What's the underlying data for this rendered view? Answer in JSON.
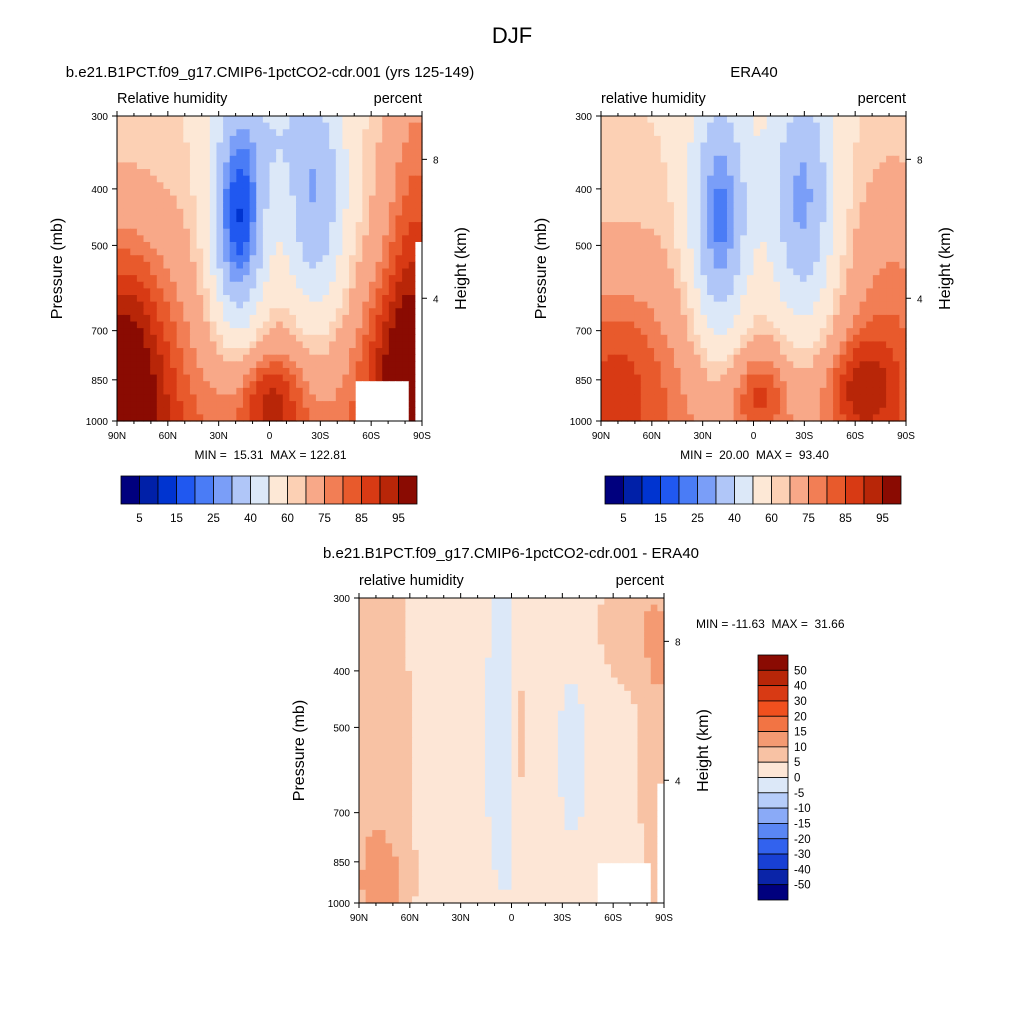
{
  "figure": {
    "title": "DJF"
  },
  "panels": [
    {
      "id": "model",
      "title": "b.e21.B1PCT.f09_g17.CMIP6-1pctCO2-cdr.001 (yrs 125-149)",
      "left_label": "Relative humidity",
      "right_label": "percent",
      "ylabel": "Pressure (mb)",
      "ylabel_right": "Height (km)",
      "x_ticks": [
        "90N",
        "60N",
        "30N",
        "0",
        "30S",
        "60S",
        "90S"
      ],
      "y_ticks": [
        "300",
        "400",
        "500",
        "700",
        "850",
        "1000"
      ],
      "height_ticks": [
        "8",
        "4"
      ],
      "minmax": "MIN =  15.31  MAX = 122.81",
      "colorbar_labels": [
        "5",
        "15",
        "25",
        "40",
        "60",
        "75",
        "85",
        "95"
      ]
    },
    {
      "id": "obs",
      "title": "ERA40",
      "left_label": "relative humidity",
      "right_label": "percent",
      "ylabel": "Pressure (mb)",
      "ylabel_right": "Height (km)",
      "x_ticks": [
        "90N",
        "60N",
        "30N",
        "0",
        "30S",
        "60S",
        "90S"
      ],
      "y_ticks": [
        "300",
        "400",
        "500",
        "700",
        "850",
        "1000"
      ],
      "height_ticks": [
        "8",
        "4"
      ],
      "minmax": "MIN =  20.00  MAX =  93.40",
      "colorbar_labels": [
        "5",
        "15",
        "25",
        "40",
        "60",
        "75",
        "85",
        "95"
      ]
    },
    {
      "id": "diff",
      "title": "b.e21.B1PCT.f09_g17.CMIP6-1pctCO2-cdr.001 - ERA40",
      "left_label": "relative humidity",
      "right_label": "percent",
      "ylabel": "Pressure (mb)",
      "ylabel_right": "Height (km)",
      "x_ticks": [
        "90N",
        "60N",
        "30N",
        "0",
        "30S",
        "60S",
        "90S"
      ],
      "y_ticks": [
        "300",
        "400",
        "500",
        "700",
        "850",
        "1000"
      ],
      "height_ticks": [
        "8",
        "4"
      ],
      "minmax": "MIN = -11.63  MAX =  31.66",
      "colorbar_labels": [
        "50",
        "40",
        "30",
        "20",
        "15",
        "10",
        "5",
        "0",
        "-5",
        "-10",
        "-15",
        "-20",
        "-30",
        "-40",
        "-50"
      ]
    }
  ],
  "colors": {
    "rh_scale": [
      "#00007e",
      "#0020a8",
      "#0034d0",
      "#2058f0",
      "#4a7cf6",
      "#7a9ef8",
      "#b0c6f8",
      "#dce8f8",
      "#fde8d6",
      "#fcd0b4",
      "#f8a888",
      "#f27e55",
      "#e85a2c",
      "#d83a14",
      "#b82608",
      "#8a0b02"
    ],
    "diff_scale": [
      "#8a0b02",
      "#b82608",
      "#d83a14",
      "#f0501e",
      "#f27444",
      "#f49a72",
      "#f8c2a4",
      "#fde6d6",
      "#dce8f8",
      "#b6cdfa",
      "#8aaaf7",
      "#5a86f4",
      "#3262ee",
      "#1840d4",
      "#0a24a8",
      "#00007e"
    ],
    "missing": "#ffffff"
  },
  "chart_data": [
    {
      "type": "heatmap",
      "title": "b.e21.B1PCT.f09_g17.CMIP6-1pctCO2-cdr.001 (yrs 125-149)",
      "variable": "Relative humidity",
      "units": "percent",
      "x": [
        90,
        60,
        30,
        0,
        -30,
        -60,
        -90
      ],
      "x_labels": [
        "90N",
        "60N",
        "30N",
        "0",
        "30S",
        "60S",
        "90S"
      ],
      "y": [
        300,
        400,
        500,
        700,
        850,
        1000
      ],
      "xlabel": "",
      "ylabel": "Pressure (mb)",
      "levels": [
        5,
        10,
        15,
        20,
        25,
        30,
        40,
        50,
        60,
        65,
        75,
        80,
        85,
        90,
        95
      ],
      "min": 15.31,
      "max": 122.81
    },
    {
      "type": "heatmap",
      "title": "ERA40",
      "variable": "relative humidity",
      "units": "percent",
      "x": [
        90,
        60,
        30,
        0,
        -30,
        -60,
        -90
      ],
      "x_labels": [
        "90N",
        "60N",
        "30N",
        "0",
        "30S",
        "60S",
        "90S"
      ],
      "y": [
        300,
        400,
        500,
        700,
        850,
        1000
      ],
      "xlabel": "",
      "ylabel": "Pressure (mb)",
      "levels": [
        5,
        10,
        15,
        20,
        25,
        30,
        40,
        50,
        60,
        65,
        75,
        80,
        85,
        90,
        95
      ],
      "min": 20.0,
      "max": 93.4
    },
    {
      "type": "heatmap",
      "title": "b.e21.B1PCT.f09_g17.CMIP6-1pctCO2-cdr.001 - ERA40",
      "variable": "relative humidity",
      "units": "percent",
      "x": [
        90,
        60,
        30,
        0,
        -30,
        -60,
        -90
      ],
      "x_labels": [
        "90N",
        "60N",
        "30N",
        "0",
        "30S",
        "60S",
        "90S"
      ],
      "y": [
        300,
        400,
        500,
        700,
        850,
        1000
      ],
      "xlabel": "",
      "ylabel": "Pressure (mb)",
      "levels": [
        -50,
        -40,
        -30,
        -20,
        -15,
        -10,
        -5,
        0,
        5,
        10,
        15,
        20,
        30,
        40,
        50
      ],
      "min": -11.63,
      "max": 31.66
    }
  ]
}
